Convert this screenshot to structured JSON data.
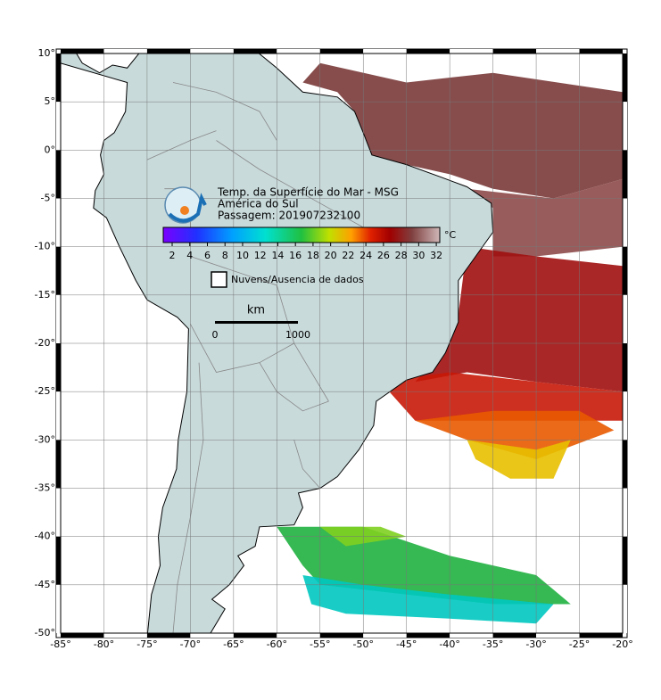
{
  "map": {
    "title": "Temp. da Superfície do Mar - MSG",
    "region": "América do Sul",
    "pass": "Passagem: 201907232100",
    "colorbar": {
      "ticks": [
        2,
        4,
        6,
        8,
        10,
        12,
        14,
        16,
        18,
        20,
        22,
        24,
        26,
        28,
        30,
        32
      ],
      "unit": "°C"
    },
    "cloud_legend": "Nuvens/Ausencia de dados",
    "scale": {
      "unit": "km",
      "start": "0",
      "end": "1000"
    },
    "lat_ticks": [
      {
        "value": 10,
        "label": "10°"
      },
      {
        "value": 5,
        "label": "5°"
      },
      {
        "value": 0,
        "label": "0°"
      },
      {
        "value": -5,
        "label": "-5°"
      },
      {
        "value": -10,
        "label": "-10°"
      },
      {
        "value": -15,
        "label": "-15°"
      },
      {
        "value": -20,
        "label": "-20°"
      },
      {
        "value": -25,
        "label": "-25°"
      },
      {
        "value": -30,
        "label": "-30°"
      },
      {
        "value": -35,
        "label": "-35°"
      },
      {
        "value": -40,
        "label": "-40°"
      },
      {
        "value": -45,
        "label": "-45°"
      },
      {
        "value": -50,
        "label": "-50°"
      }
    ],
    "lon_ticks": [
      {
        "value": -85,
        "label": "-85°"
      },
      {
        "value": -80,
        "label": "-80°"
      },
      {
        "value": -75,
        "label": "-75°"
      },
      {
        "value": -70,
        "label": "-70°"
      },
      {
        "value": -65,
        "label": "-65°"
      },
      {
        "value": -60,
        "label": "-60°"
      },
      {
        "value": -55,
        "label": "-55°"
      },
      {
        "value": -50,
        "label": "-50°"
      },
      {
        "value": -45,
        "label": "-45°"
      },
      {
        "value": -40,
        "label": "-40°"
      },
      {
        "value": -35,
        "label": "-35°"
      },
      {
        "value": -30,
        "label": "-30°"
      },
      {
        "value": -25,
        "label": "-25°"
      },
      {
        "value": -20,
        "label": "-20°"
      }
    ]
  }
}
